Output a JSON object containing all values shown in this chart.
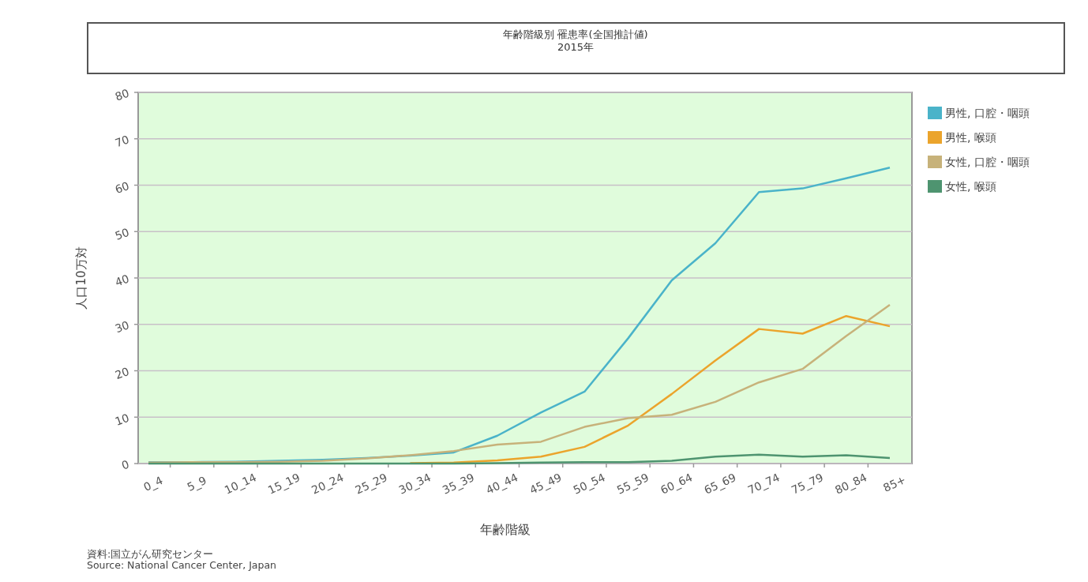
{
  "chart_data": {
    "type": "line",
    "title": "年齢階級別 罹患率(全国推計値)",
    "subtitle": "2015年",
    "xlabel": "年齢階級",
    "ylabel": "人口10万対",
    "categories": [
      "0_4",
      "5_9",
      "10_14",
      "15_19",
      "20_24",
      "25_29",
      "30_34",
      "35_39",
      "40_44",
      "45_49",
      "50_54",
      "55_59",
      "60_64",
      "65_69",
      "70_74",
      "75_79",
      "80_84",
      "85+"
    ],
    "series": [
      {
        "name": "男性, 口腔・咽頭",
        "color": "#4ab3c9",
        "values": [
          0.3,
          0.3,
          0.4,
          0.6,
          0.8,
          1.2,
          1.7,
          2.4,
          6,
          11,
          15.5,
          27,
          39.5,
          47.5,
          58.5,
          59.3,
          61.5,
          63.8
        ]
      },
      {
        "name": "男性, 喉頭",
        "color": "#eba42c",
        "values": [
          null,
          null,
          null,
          null,
          null,
          null,
          0.1,
          0.2,
          0.7,
          1.5,
          3.6,
          8.2,
          15,
          22.2,
          29,
          28,
          31.8,
          29.6
        ]
      },
      {
        "name": "女性, 口腔・咽頭",
        "color": "#c7b27a",
        "values": [
          0.2,
          0.3,
          0.3,
          0.4,
          0.6,
          1.1,
          1.8,
          2.7,
          4.1,
          4.7,
          7.9,
          9.8,
          10.5,
          13.3,
          17.5,
          20.4,
          27.5,
          34.2
        ]
      },
      {
        "name": "女性, 喉頭",
        "color": "#4e9470",
        "values": [
          0,
          0,
          0,
          0,
          0,
          0,
          0,
          0,
          0.1,
          0.2,
          0.3,
          0.3,
          0.6,
          1.5,
          1.9,
          1.5,
          1.8,
          1.2
        ]
      }
    ],
    "ylim": [
      0,
      80
    ],
    "yticks": [
      0,
      10,
      20,
      30,
      40,
      50,
      60,
      70,
      80
    ],
    "grid": "y",
    "legend": "right",
    "line_style": "solid",
    "marker": "none",
    "annotations": [
      "資料:国立がん研究センター",
      "Source: National Cancer Center, Japan"
    ]
  }
}
